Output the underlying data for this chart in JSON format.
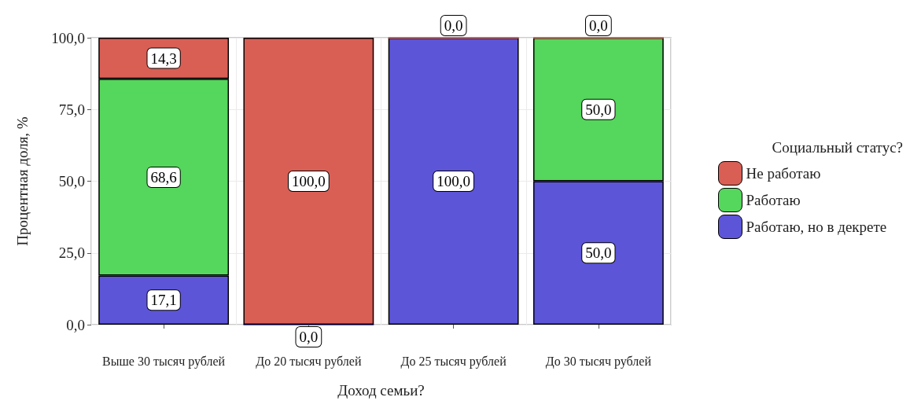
{
  "chart_data": {
    "type": "bar",
    "stacked": true,
    "xlabel": "Доход семьи?",
    "ylabel": "Процентная доля, %",
    "legend_title": "Социальный статус?",
    "legend": "right",
    "grid": true,
    "categories": [
      "Выше 30 тысяч рублей",
      "До 20 тысяч рублей",
      "До 25 тысяч рублей",
      "До 30 тысяч рублей"
    ],
    "ylim": [
      0,
      100
    ],
    "yticks": [
      {
        "value": 0,
        "label": "0,0"
      },
      {
        "value": 25,
        "label": "25,0"
      },
      {
        "value": 50,
        "label": "50,0"
      },
      {
        "value": 75,
        "label": "75,0"
      },
      {
        "value": 100,
        "label": "100,0"
      }
    ],
    "series": [
      {
        "name": "Работаю, но в декрете",
        "color": "#5c55d8",
        "values": [
          17.1,
          0,
          100,
          50
        ],
        "value_labels": [
          "17,1",
          "0,0",
          "100,0",
          "50,0"
        ]
      },
      {
        "name": "Работаю",
        "color": "#55d65c",
        "values": [
          68.6,
          null,
          null,
          50
        ],
        "value_labels": [
          "68,6",
          null,
          null,
          "50,0"
        ]
      },
      {
        "name": "Не работаю",
        "color": "#d95f55",
        "values": [
          14.3,
          100,
          0,
          0
        ],
        "value_labels": [
          "14,3",
          "100,0",
          "0,0",
          "0,0"
        ]
      }
    ]
  }
}
